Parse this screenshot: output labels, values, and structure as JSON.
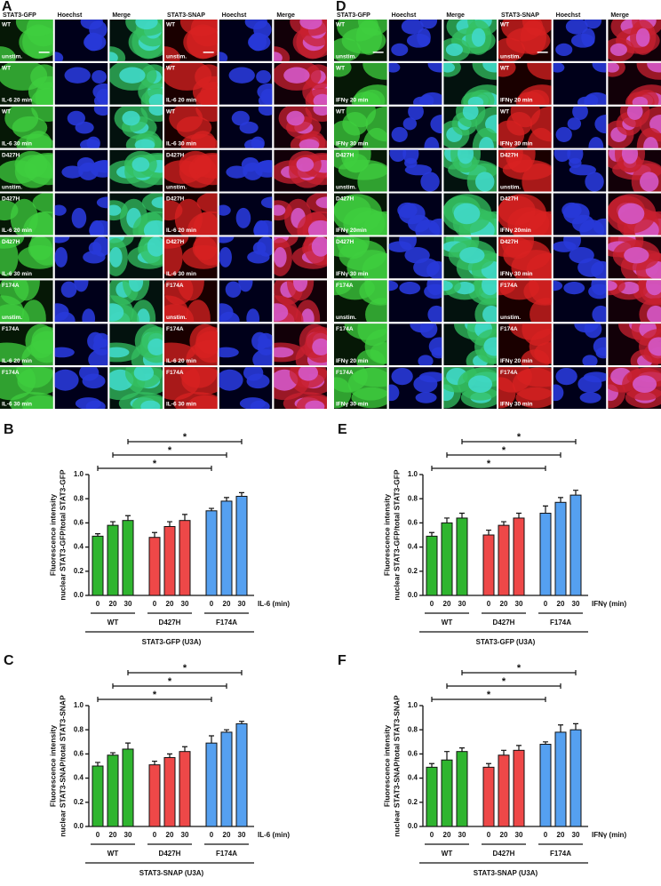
{
  "panels": [
    {
      "label": "A",
      "columns": [
        "STAT3-GFP",
        "Hoechst",
        "Merge",
        "STAT3-SNAP",
        "Hoechst",
        "Merge"
      ],
      "rows": [
        {
          "variant": "WT",
          "condition": "unstim."
        },
        {
          "variant": "WT",
          "condition": "IL-6 20 min"
        },
        {
          "variant": "WT",
          "condition": "IL-6 30 min"
        },
        {
          "variant": "D427H",
          "condition": "unstim."
        },
        {
          "variant": "D427H",
          "condition": "IL-6 20 min"
        },
        {
          "variant": "D427H",
          "condition": "IL-6 30 min"
        },
        {
          "variant": "F174A",
          "condition": "unstim."
        },
        {
          "variant": "F174A",
          "condition": "IL-6 20 min"
        },
        {
          "variant": "F174A",
          "condition": "IL-6 30 min"
        }
      ]
    },
    {
      "label": "D",
      "columns": [
        "STAT3-GFP",
        "Hoechst",
        "Merge",
        "STAT3-SNAP",
        "Hoechst",
        "Merge"
      ],
      "rows": [
        {
          "variant": "WT",
          "condition": "unstim."
        },
        {
          "variant": "WT",
          "condition": "IFNγ 20 min"
        },
        {
          "variant": "WT",
          "condition": "IFNγ 30 min"
        },
        {
          "variant": "D427H",
          "condition": "unstim."
        },
        {
          "variant": "D427H",
          "condition": "IFNγ 20min"
        },
        {
          "variant": "D427H",
          "condition": "IFNγ 30 min"
        },
        {
          "variant": "F174A",
          "condition": "unstim."
        },
        {
          "variant": "F174A",
          "condition": "IFNγ 20 min"
        },
        {
          "variant": "F174A",
          "condition": "IFNγ 30 min"
        }
      ]
    }
  ],
  "chart_data": [
    {
      "type": "bar",
      "panel": "B",
      "ylabel": [
        "Fluorescence intensity",
        "nuclear STAT3-GFP/total STAT3-GFP"
      ],
      "xlabel": "IL-6 (min)",
      "footer": "STAT3-GFP (U3A)",
      "categories": [
        "0",
        "20",
        "30"
      ],
      "groups": [
        {
          "name": "WT",
          "color": "#2fb52f",
          "values": [
            0.49,
            0.58,
            0.62
          ],
          "errors": [
            0.02,
            0.03,
            0.04
          ]
        },
        {
          "name": "D427H",
          "color": "#ee4848",
          "values": [
            0.48,
            0.57,
            0.62
          ],
          "errors": [
            0.04,
            0.04,
            0.05
          ]
        },
        {
          "name": "F174A",
          "color": "#55a0f0",
          "values": [
            0.7,
            0.78,
            0.82
          ],
          "errors": [
            0.02,
            0.03,
            0.03
          ]
        }
      ],
      "annotations": [
        "*",
        "*",
        "*"
      ],
      "ylim": [
        0,
        1
      ],
      "yticks": [
        {
          "value": 0,
          "label": "0.0"
        },
        0.2,
        0.4,
        0.6,
        0.8,
        {
          "value": 1,
          "label": "1.0"
        }
      ]
    },
    {
      "type": "bar",
      "panel": "C",
      "ylabel": [
        "Fluorescence intensity",
        "nuclear STAT3-SNAP/total STAT3-SNAP"
      ],
      "xlabel": "IL-6 (min)",
      "footer": "STAT3-SNAP (U3A)",
      "categories": [
        "0",
        "20",
        "30"
      ],
      "groups": [
        {
          "name": "WT",
          "color": "#2fb52f",
          "values": [
            0.5,
            0.59,
            0.64
          ],
          "errors": [
            0.03,
            0.02,
            0.05
          ]
        },
        {
          "name": "D427H",
          "color": "#ee4848",
          "values": [
            0.51,
            0.57,
            0.62
          ],
          "errors": [
            0.03,
            0.03,
            0.04
          ]
        },
        {
          "name": "F174A",
          "color": "#55a0f0",
          "values": [
            0.69,
            0.78,
            0.85
          ],
          "errors": [
            0.06,
            0.02,
            0.02
          ]
        }
      ],
      "annotations": [
        "*",
        "*",
        "*"
      ],
      "ylim": [
        0,
        1
      ],
      "yticks": [
        {
          "value": 0,
          "label": "0.0"
        },
        0.2,
        0.4,
        0.6,
        0.8,
        {
          "value": 1,
          "label": "1.0"
        }
      ]
    },
    {
      "type": "bar",
      "panel": "E",
      "ylabel": [
        "Fluorescence intensity",
        "nuclear STAT3-GFP/total STAT3-GFP"
      ],
      "xlabel": "IFNγ (min)",
      "footer": "STAT3-GFP (U3A)",
      "categories": [
        "0",
        "20",
        "30"
      ],
      "groups": [
        {
          "name": "WT",
          "color": "#2fb52f",
          "values": [
            0.49,
            0.6,
            0.64
          ],
          "errors": [
            0.03,
            0.04,
            0.04
          ]
        },
        {
          "name": "D427H",
          "color": "#ee4848",
          "values": [
            0.5,
            0.58,
            0.64
          ],
          "errors": [
            0.04,
            0.03,
            0.04
          ]
        },
        {
          "name": "F174A",
          "color": "#55a0f0",
          "values": [
            0.68,
            0.77,
            0.83
          ],
          "errors": [
            0.06,
            0.04,
            0.04
          ]
        }
      ],
      "annotations": [
        "*",
        "*",
        "*"
      ],
      "ylim": [
        0,
        1
      ],
      "yticks": [
        {
          "value": 0,
          "label": "0.0"
        },
        0.2,
        0.4,
        0.6,
        0.8,
        {
          "value": 1,
          "label": "1.0"
        }
      ]
    },
    {
      "type": "bar",
      "panel": "F",
      "ylabel": [
        "Fluorescence intensity",
        "nuclear STAT3-SNAP/total STAT3-SNAP"
      ],
      "xlabel": "IFNγ (min)",
      "footer": "STAT3-SNAP (U3A)",
      "categories": [
        "0",
        "20",
        "30"
      ],
      "groups": [
        {
          "name": "WT",
          "color": "#2fb52f",
          "values": [
            0.49,
            0.55,
            0.62
          ],
          "errors": [
            0.03,
            0.07,
            0.03
          ]
        },
        {
          "name": "D427H",
          "color": "#ee4848",
          "values": [
            0.49,
            0.59,
            0.63
          ],
          "errors": [
            0.03,
            0.04,
            0.04
          ]
        },
        {
          "name": "F174A",
          "color": "#55a0f0",
          "values": [
            0.68,
            0.78,
            0.8
          ],
          "errors": [
            0.02,
            0.06,
            0.05
          ]
        }
      ],
      "annotations": [
        "*",
        "*",
        "*"
      ],
      "ylim": [
        0,
        1
      ],
      "yticks": [
        {
          "value": 0,
          "label": "0.0"
        },
        0.2,
        0.4,
        0.6,
        0.8,
        {
          "value": 1,
          "label": "1.0"
        }
      ]
    }
  ]
}
